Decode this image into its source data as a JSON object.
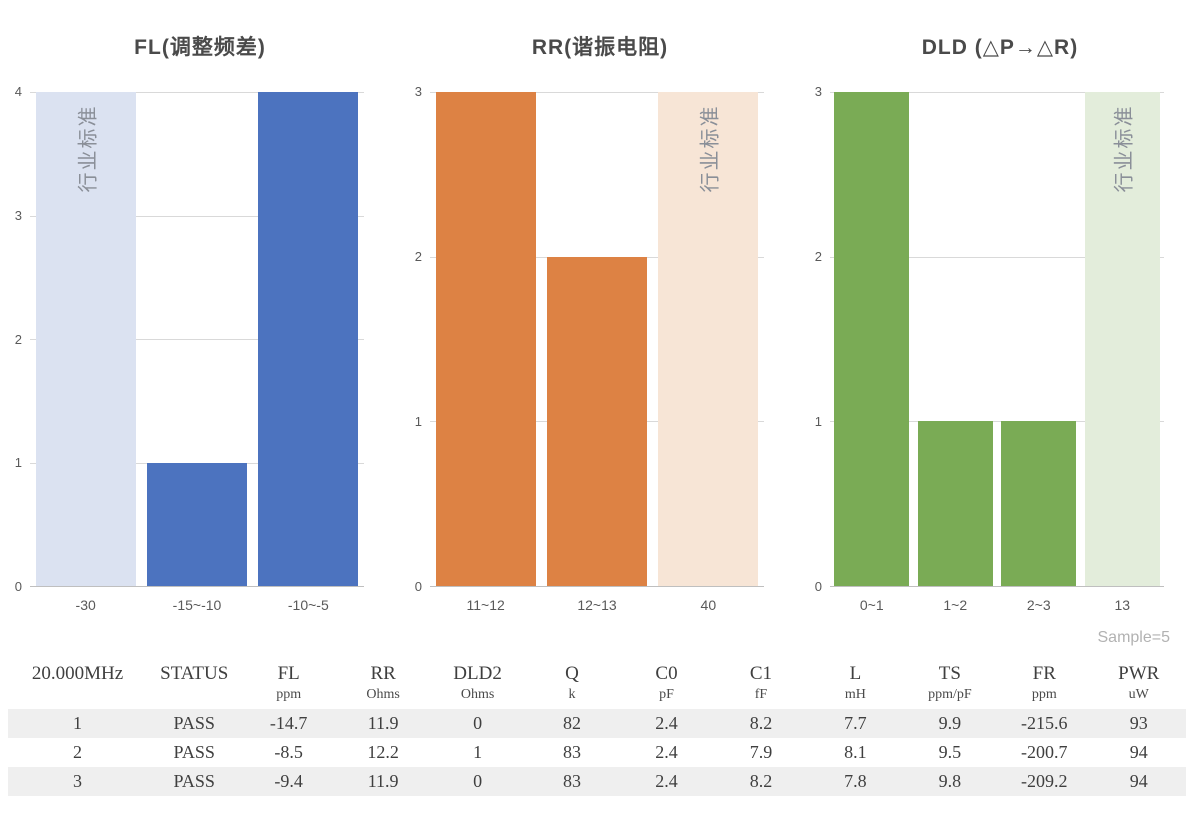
{
  "chart_data": [
    {
      "type": "bar",
      "title": "FL(调整频差)",
      "ymax": 4,
      "yticks": [
        0,
        1,
        2,
        3,
        4
      ],
      "band_label": "行业标准",
      "bars": [
        {
          "category": "-30",
          "value": 4,
          "is_band": true
        },
        {
          "category": "-15~-10",
          "value": 1,
          "is_band": false
        },
        {
          "category": "-10~-5",
          "value": 4,
          "is_band": false
        }
      ],
      "colors": {
        "bar": "#4c73bf",
        "band": "#dbe2f1"
      }
    },
    {
      "type": "bar",
      "title": "RR(谐振电阻)",
      "ymax": 3,
      "yticks": [
        0,
        1,
        2,
        3
      ],
      "band_label": "行业标准",
      "bars": [
        {
          "category": "11~12",
          "value": 3,
          "is_band": false
        },
        {
          "category": "12~13",
          "value": 2,
          "is_band": false
        },
        {
          "category": "40",
          "value": 3,
          "is_band": true
        }
      ],
      "colors": {
        "bar": "#dd8244",
        "band": "#f7e5d6"
      }
    },
    {
      "type": "bar",
      "title": "DLD (△P→△R)",
      "ymax": 3,
      "yticks": [
        0,
        1,
        2,
        3
      ],
      "band_label": "行业标准",
      "bars": [
        {
          "category": "0~1",
          "value": 3,
          "is_band": false
        },
        {
          "category": "1~2",
          "value": 1,
          "is_band": false
        },
        {
          "category": "2~3",
          "value": 1,
          "is_band": false
        },
        {
          "category": "13",
          "value": 3,
          "is_band": true
        }
      ],
      "colors": {
        "bar": "#7aab55",
        "band": "#e3eddb"
      }
    }
  ],
  "table": {
    "sample_label": "Sample=5",
    "columns": [
      {
        "label": "20.000MHz",
        "unit": ""
      },
      {
        "label": "STATUS",
        "unit": ""
      },
      {
        "label": "FL",
        "unit": "ppm"
      },
      {
        "label": "RR",
        "unit": "Ohms"
      },
      {
        "label": "DLD2",
        "unit": "Ohms"
      },
      {
        "label": "Q",
        "unit": "k"
      },
      {
        "label": "C0",
        "unit": "pF"
      },
      {
        "label": "C1",
        "unit": "fF"
      },
      {
        "label": "L",
        "unit": "mH"
      },
      {
        "label": "TS",
        "unit": "ppm/pF"
      },
      {
        "label": "FR",
        "unit": "ppm"
      },
      {
        "label": "PWR",
        "unit": "uW"
      }
    ],
    "rows": [
      [
        "1",
        "PASS",
        "-14.7",
        "11.9",
        "0",
        "82",
        "2.4",
        "8.2",
        "7.7",
        "9.9",
        "-215.6",
        "93"
      ],
      [
        "2",
        "PASS",
        "-8.5",
        "12.2",
        "1",
        "83",
        "2.4",
        "7.9",
        "8.1",
        "9.5",
        "-200.7",
        "94"
      ],
      [
        "3",
        "PASS",
        "-9.4",
        "11.9",
        "0",
        "83",
        "2.4",
        "8.2",
        "7.8",
        "9.8",
        "-209.2",
        "94"
      ]
    ]
  }
}
